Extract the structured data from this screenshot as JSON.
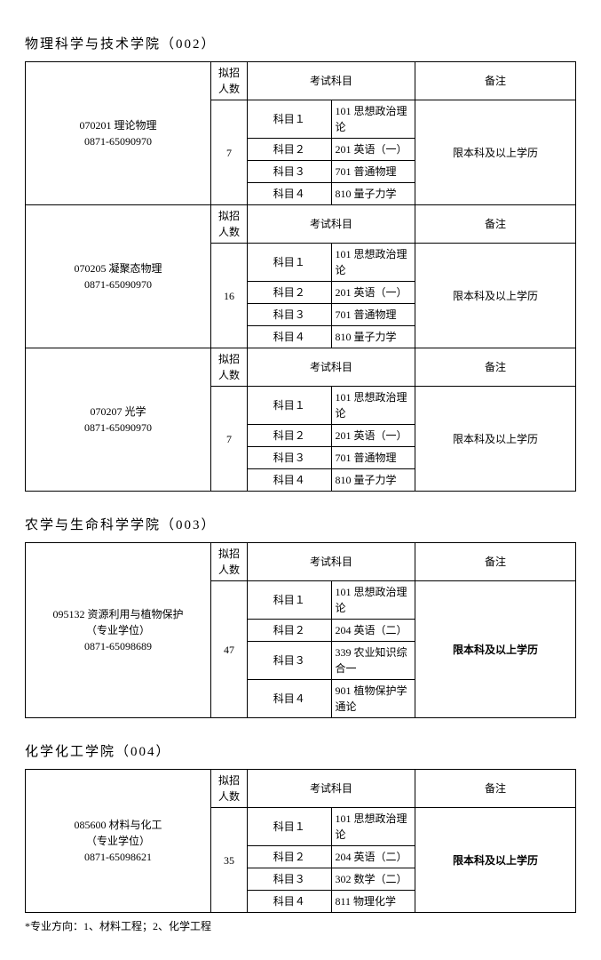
{
  "labels": {
    "quota_header": "拟招人数",
    "exam_subjects_header": "考试科目",
    "note_header": "备注",
    "subject_prefix": "科目",
    "degree_type": "（专业学位）"
  },
  "colleges": [
    {
      "title": "物理科学与技术学院（002）",
      "programs": [
        {
          "code_name": "070201 理论物理",
          "phone": "0871-65090970",
          "degree_type": "",
          "quota": "7",
          "subjects": [
            {
              "label": "科目１",
              "name": "101 思想政治理论"
            },
            {
              "label": "科目２",
              "name": "201 英语（一）"
            },
            {
              "label": "科目３",
              "name": "701 普通物理"
            },
            {
              "label": "科目４",
              "name": "810 量子力学"
            }
          ],
          "note": "限本科及以上学历",
          "note_bold": false
        },
        {
          "code_name": "070205 凝聚态物理",
          "phone": "0871-65090970",
          "degree_type": "",
          "quota": "16",
          "subjects": [
            {
              "label": "科目１",
              "name": "101 思想政治理论"
            },
            {
              "label": "科目２",
              "name": "201 英语（一）"
            },
            {
              "label": "科目３",
              "name": "701 普通物理"
            },
            {
              "label": "科目４",
              "name": "810 量子力学"
            }
          ],
          "note": "限本科及以上学历",
          "note_bold": false
        },
        {
          "code_name": "070207 光学",
          "phone": "0871-65090970",
          "degree_type": "",
          "quota": "7",
          "subjects": [
            {
              "label": "科目１",
              "name": "101 思想政治理论"
            },
            {
              "label": "科目２",
              "name": "201 英语（一）"
            },
            {
              "label": "科目３",
              "name": "701 普通物理"
            },
            {
              "label": "科目４",
              "name": "810 量子力学"
            }
          ],
          "note": "限本科及以上学历",
          "note_bold": false
        }
      ],
      "footnote": ""
    },
    {
      "title": "农学与生命科学学院（003）",
      "programs": [
        {
          "code_name": "095132 资源利用与植物保护",
          "phone": "0871-65098689",
          "degree_type": "（专业学位）",
          "quota": "47",
          "subjects": [
            {
              "label": "科目１",
              "name": "101 思想政治理论"
            },
            {
              "label": "科目２",
              "name": "204 英语（二）"
            },
            {
              "label": "科目３",
              "name": "339 农业知识综合一"
            },
            {
              "label": "科目４",
              "name": "901 植物保护学通论"
            }
          ],
          "note": "限本科及以上学历",
          "note_bold": true
        }
      ],
      "footnote": ""
    },
    {
      "title": "化学化工学院（004）",
      "programs": [
        {
          "code_name": "085600 材料与化工",
          "phone": "0871-65098621",
          "degree_type": "（专业学位）",
          "quota": "35",
          "subjects": [
            {
              "label": "科目１",
              "name": "101 思想政治理论"
            },
            {
              "label": "科目２",
              "name": "204 英语（二）"
            },
            {
              "label": "科目３",
              "name": "302 数学（二）"
            },
            {
              "label": "科目４",
              "name": "811 物理化学"
            }
          ],
          "note": "限本科及以上学历",
          "note_bold": true
        }
      ],
      "footnote": "*专业方向：1、材料工程；2、化学工程"
    }
  ]
}
